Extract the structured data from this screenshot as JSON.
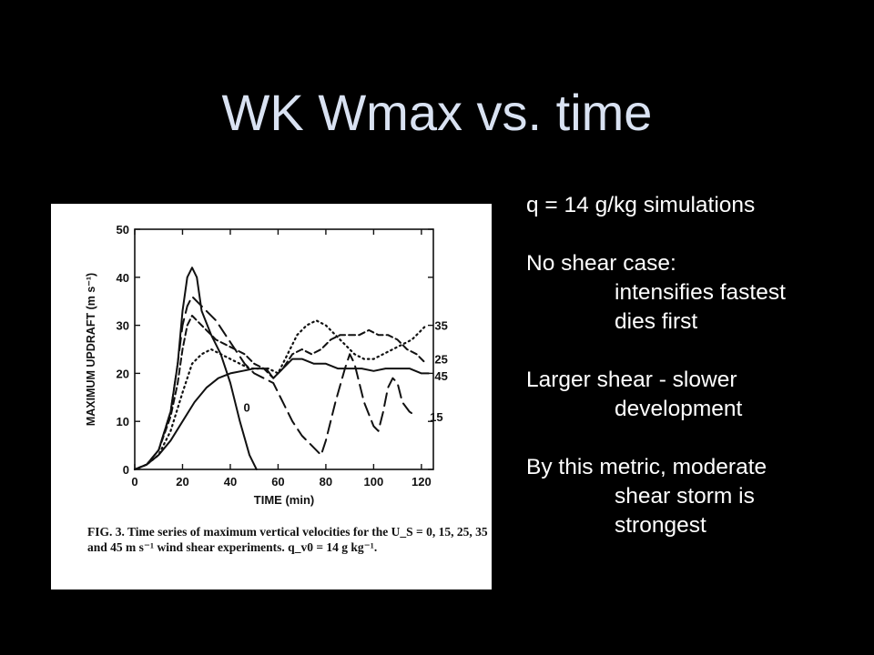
{
  "slide": {
    "title": "WK Wmax vs. time"
  },
  "figure": {
    "caption": "FIG. 3. Time series of maximum vertical velocities for the U_S = 0, 15, 25, 35 and 45 m s⁻¹ wind shear experiments. q_v0 = 14 g kg⁻¹."
  },
  "notes": {
    "line1": "q = 14 g/kg simulations",
    "line2": "No shear case:",
    "line3": "intensifies fastest",
    "line4": "dies first",
    "line5": "Larger shear - slower",
    "line6": "development",
    "line7": "By this metric, moderate",
    "line8": "shear storm is",
    "line9": "strongest"
  },
  "chart_data": {
    "type": "line",
    "xlabel": "TIME (min)",
    "ylabel": "MAXIMUM UPDRAFT (m s⁻¹)",
    "xlim": [
      0,
      125
    ],
    "ylim": [
      0,
      50
    ],
    "xticks": [
      0,
      20,
      40,
      60,
      80,
      100,
      120
    ],
    "yticks": [
      0,
      10,
      20,
      30,
      40,
      50
    ],
    "series": [
      {
        "name": "0",
        "style": "solid",
        "points": [
          [
            0,
            0
          ],
          [
            5,
            1
          ],
          [
            10,
            4
          ],
          [
            15,
            12
          ],
          [
            18,
            22
          ],
          [
            20,
            33
          ],
          [
            22,
            40
          ],
          [
            24,
            42
          ],
          [
            26,
            40
          ],
          [
            28,
            33
          ],
          [
            32,
            28
          ],
          [
            36,
            24
          ],
          [
            40,
            18
          ],
          [
            44,
            10
          ],
          [
            48,
            3
          ],
          [
            51,
            0
          ]
        ]
      },
      {
        "name": "15",
        "style": "long-dash",
        "points": [
          [
            0,
            0
          ],
          [
            5,
            1
          ],
          [
            10,
            4
          ],
          [
            15,
            12
          ],
          [
            18,
            22
          ],
          [
            20,
            30
          ],
          [
            22,
            34
          ],
          [
            24,
            36
          ],
          [
            26,
            35
          ],
          [
            30,
            33
          ],
          [
            34,
            31
          ],
          [
            38,
            28
          ],
          [
            42,
            25
          ],
          [
            46,
            22
          ],
          [
            50,
            20
          ],
          [
            54,
            19
          ],
          [
            58,
            18
          ],
          [
            62,
            14
          ],
          [
            66,
            10
          ],
          [
            70,
            7
          ],
          [
            74,
            5
          ],
          [
            78,
            3
          ],
          [
            80,
            6
          ],
          [
            84,
            14
          ],
          [
            88,
            21
          ],
          [
            90,
            24
          ],
          [
            92,
            22
          ],
          [
            96,
            14
          ],
          [
            100,
            9
          ],
          [
            102,
            8
          ],
          [
            104,
            12
          ],
          [
            106,
            17
          ],
          [
            108,
            19
          ],
          [
            110,
            18
          ],
          [
            112,
            14
          ],
          [
            115,
            12
          ],
          [
            118,
            11
          ]
        ]
      },
      {
        "name": "25",
        "style": "short-dash",
        "points": [
          [
            0,
            0
          ],
          [
            5,
            1
          ],
          [
            10,
            4
          ],
          [
            15,
            11
          ],
          [
            18,
            18
          ],
          [
            20,
            25
          ],
          [
            22,
            30
          ],
          [
            24,
            32
          ],
          [
            26,
            31
          ],
          [
            30,
            29
          ],
          [
            34,
            27
          ],
          [
            38,
            26
          ],
          [
            42,
            25
          ],
          [
            46,
            24
          ],
          [
            50,
            22
          ],
          [
            54,
            21
          ],
          [
            58,
            19
          ],
          [
            62,
            21
          ],
          [
            66,
            24
          ],
          [
            70,
            25
          ],
          [
            74,
            24
          ],
          [
            78,
            25
          ],
          [
            82,
            27
          ],
          [
            86,
            28
          ],
          [
            90,
            28
          ],
          [
            94,
            28
          ],
          [
            98,
            29
          ],
          [
            102,
            28
          ],
          [
            106,
            28
          ],
          [
            110,
            27
          ],
          [
            114,
            25
          ],
          [
            118,
            24
          ],
          [
            122,
            22
          ]
        ]
      },
      {
        "name": "35",
        "style": "dotted",
        "points": [
          [
            0,
            0
          ],
          [
            5,
            1
          ],
          [
            10,
            3
          ],
          [
            15,
            8
          ],
          [
            20,
            16
          ],
          [
            24,
            22
          ],
          [
            28,
            24
          ],
          [
            32,
            25
          ],
          [
            36,
            24
          ],
          [
            40,
            23
          ],
          [
            44,
            22
          ],
          [
            48,
            21
          ],
          [
            52,
            21
          ],
          [
            56,
            21
          ],
          [
            60,
            20
          ],
          [
            64,
            24
          ],
          [
            68,
            28
          ],
          [
            72,
            30
          ],
          [
            76,
            31
          ],
          [
            80,
            30
          ],
          [
            84,
            28
          ],
          [
            88,
            26
          ],
          [
            92,
            24
          ],
          [
            96,
            23
          ],
          [
            100,
            23
          ],
          [
            104,
            24
          ],
          [
            108,
            25
          ],
          [
            112,
            26
          ],
          [
            116,
            27
          ],
          [
            120,
            29
          ],
          [
            122,
            30
          ]
        ]
      },
      {
        "name": "45",
        "style": "solid",
        "points": [
          [
            0,
            0
          ],
          [
            5,
            1
          ],
          [
            10,
            3
          ],
          [
            15,
            6
          ],
          [
            20,
            10
          ],
          [
            25,
            14
          ],
          [
            30,
            17
          ],
          [
            35,
            19
          ],
          [
            40,
            20
          ],
          [
            45,
            20.5
          ],
          [
            50,
            21
          ],
          [
            55,
            21
          ],
          [
            58,
            19
          ],
          [
            62,
            21
          ],
          [
            66,
            23
          ],
          [
            70,
            23
          ],
          [
            75,
            22
          ],
          [
            80,
            22
          ],
          [
            85,
            21
          ],
          [
            90,
            21
          ],
          [
            95,
            21
          ],
          [
            100,
            20.5
          ],
          [
            105,
            21
          ],
          [
            110,
            21
          ],
          [
            115,
            21
          ],
          [
            120,
            20
          ],
          [
            123,
            20
          ]
        ]
      }
    ],
    "curve_labels": [
      {
        "text": "0",
        "x": 44,
        "y": 13
      },
      {
        "text": "35",
        "x": 124,
        "y": 30
      },
      {
        "text": "25",
        "x": 124,
        "y": 23
      },
      {
        "text": "45",
        "x": 124,
        "y": 19.5
      },
      {
        "text": "15",
        "x": 122,
        "y": 11
      }
    ]
  }
}
